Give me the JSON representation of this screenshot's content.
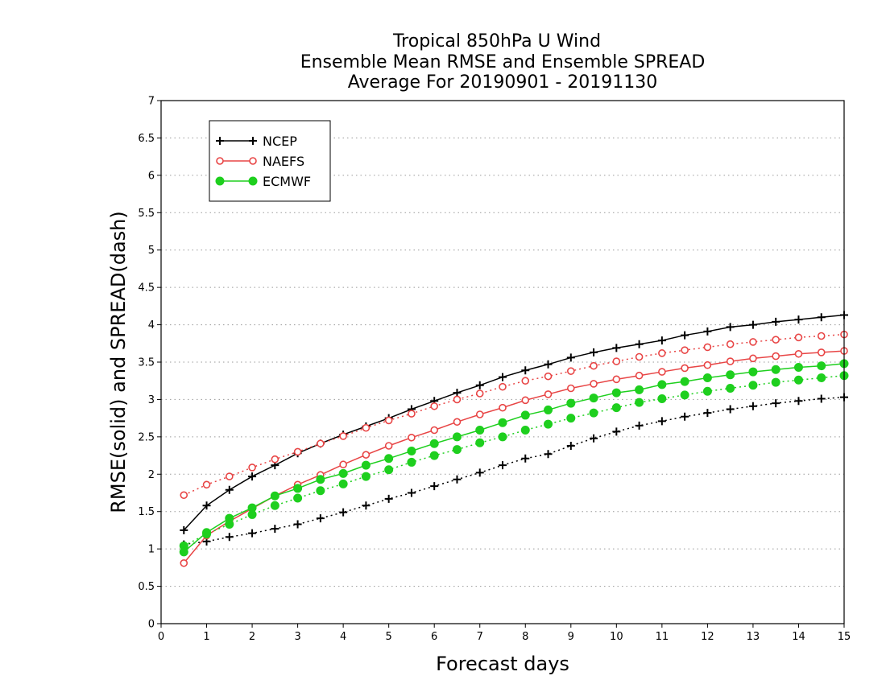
{
  "chart_data": {
    "type": "line",
    "title_lines": [
      "Tropical 850hPa U Wind",
      "Ensemble Mean RMSE and Ensemble SPREAD",
      "Average For 20190901 - 20191130"
    ],
    "xlabel": "Forecast days",
    "ylabel": "RMSE(solid) and SPREAD(dash)",
    "xlim": [
      0,
      15
    ],
    "ylim": [
      0,
      7
    ],
    "xticks": [
      "0",
      "1",
      "2",
      "3",
      "4",
      "5",
      "6",
      "7",
      "8",
      "9",
      "10",
      "11",
      "12",
      "13",
      "14",
      "15"
    ],
    "yticks": [
      "0",
      "0.5",
      "1",
      "1.5",
      "2",
      "2.5",
      "3",
      "3.5",
      "4",
      "4.5",
      "5",
      "5.5",
      "6",
      "6.5",
      "7"
    ],
    "grid": "horizontal dotted",
    "legend_position": "top-left",
    "x": [
      0.5,
      1,
      1.5,
      2,
      2.5,
      3,
      3.5,
      4,
      4.5,
      5,
      5.5,
      6,
      6.5,
      7,
      7.5,
      8,
      8.5,
      9,
      9.5,
      10,
      10.5,
      11,
      11.5,
      12,
      12.5,
      13,
      13.5,
      14,
      14.5,
      15
    ],
    "series": [
      {
        "name": "NCEP",
        "color": "#000000",
        "marker": "plus",
        "rmse": [
          1.25,
          1.58,
          1.79,
          1.97,
          2.12,
          2.28,
          2.41,
          2.53,
          2.64,
          2.75,
          2.87,
          2.98,
          3.09,
          3.19,
          3.3,
          3.39,
          3.47,
          3.56,
          3.63,
          3.69,
          3.74,
          3.79,
          3.86,
          3.91,
          3.97,
          4.0,
          4.04,
          4.07,
          4.1,
          4.13
        ],
        "spread": [
          1.06,
          1.1,
          1.16,
          1.21,
          1.27,
          1.33,
          1.41,
          1.49,
          1.58,
          1.67,
          1.75,
          1.84,
          1.93,
          2.02,
          2.12,
          2.21,
          2.27,
          2.38,
          2.48,
          2.57,
          2.65,
          2.71,
          2.77,
          2.82,
          2.87,
          2.91,
          2.95,
          2.98,
          3.01,
          3.03
        ]
      },
      {
        "name": "NAEFS",
        "color": "#e84545",
        "marker": "open-circle",
        "rmse": [
          0.81,
          1.18,
          1.37,
          1.54,
          1.71,
          1.86,
          1.99,
          2.13,
          2.26,
          2.38,
          2.49,
          2.59,
          2.7,
          2.8,
          2.89,
          2.99,
          3.07,
          3.15,
          3.21,
          3.27,
          3.32,
          3.37,
          3.42,
          3.46,
          3.51,
          3.55,
          3.58,
          3.61,
          3.63,
          3.65
        ],
        "spread": [
          1.72,
          1.86,
          1.97,
          2.09,
          2.2,
          2.3,
          2.41,
          2.51,
          2.62,
          2.72,
          2.81,
          2.91,
          3.0,
          3.08,
          3.17,
          3.25,
          3.31,
          3.38,
          3.45,
          3.51,
          3.57,
          3.62,
          3.66,
          3.7,
          3.74,
          3.77,
          3.8,
          3.83,
          3.85,
          3.87
        ]
      },
      {
        "name": "ECMWF",
        "color": "#1ecf1e",
        "marker": "filled-circle",
        "rmse": [
          0.96,
          1.22,
          1.41,
          1.55,
          1.71,
          1.81,
          1.93,
          2.01,
          2.12,
          2.21,
          2.31,
          2.41,
          2.5,
          2.59,
          2.69,
          2.79,
          2.86,
          2.95,
          3.02,
          3.09,
          3.13,
          3.2,
          3.24,
          3.29,
          3.33,
          3.37,
          3.4,
          3.43,
          3.45,
          3.48
        ],
        "spread": [
          1.04,
          1.2,
          1.33,
          1.46,
          1.58,
          1.68,
          1.78,
          1.87,
          1.97,
          2.06,
          2.16,
          2.25,
          2.33,
          2.42,
          2.5,
          2.59,
          2.67,
          2.75,
          2.82,
          2.89,
          2.96,
          3.01,
          3.06,
          3.11,
          3.15,
          3.19,
          3.23,
          3.26,
          3.29,
          3.32
        ]
      }
    ]
  }
}
